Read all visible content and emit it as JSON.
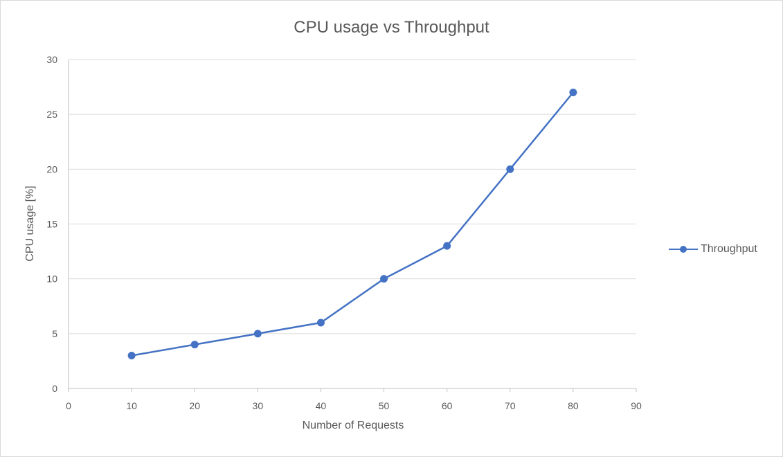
{
  "chart_data": {
    "type": "scatter",
    "title": "CPU usage vs Throughput",
    "xlabel": "Number of Requests",
    "ylabel": "CPU usage [%]",
    "xlim": [
      0,
      90
    ],
    "ylim": [
      0,
      30
    ],
    "x_ticks": [
      0,
      10,
      20,
      30,
      40,
      50,
      60,
      70,
      80,
      90
    ],
    "y_ticks": [
      0,
      5,
      10,
      15,
      20,
      25,
      30
    ],
    "grid": "horizontal",
    "legend_position": "right",
    "series": [
      {
        "name": "Throughput",
        "color": "#4472c4",
        "line": "straight-with-markers",
        "x": [
          10,
          20,
          30,
          40,
          50,
          60,
          70,
          80
        ],
        "y": [
          3,
          4,
          5,
          6,
          10,
          13,
          20,
          27
        ]
      }
    ]
  }
}
